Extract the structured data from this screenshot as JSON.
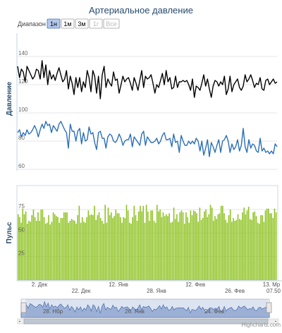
{
  "chart_data": {
    "title": "Артериальное давление",
    "range_selector": {
      "label": "Диапазон",
      "buttons": [
        "1н",
        "1м",
        "3м",
        "1г",
        "Все"
      ],
      "selected": "1н",
      "disabled": [
        "1г",
        "Все"
      ]
    },
    "x_axis": {
      "ticks_top": [
        "2. Дек",
        "12. Янв",
        "12. Фев",
        "13. Мр"
      ],
      "ticks_bottom": [
        "22. Дек",
        "28. Янв",
        "26. Фев",
        "07.50"
      ]
    },
    "navigator": {
      "labels": [
        "28. Нбр",
        "26. Янв",
        "24. Фев"
      ]
    },
    "credits": "Highcharts.com",
    "panels": [
      {
        "type": "line",
        "ylabel": "Давление",
        "ylim": [
          60,
          140
        ],
        "yticks": [
          60,
          80,
          100,
          120,
          140
        ],
        "grid": true,
        "series": [
          {
            "color": "#000000",
            "values": [
              133,
              125,
              131,
              129,
              122,
              133,
              130,
              127,
              124,
              126,
              131,
              130,
              124,
              137,
              125,
              134,
              120,
              130,
              124,
              127,
              123,
              128,
              132,
              127,
              122,
              124,
              130,
              117,
              126,
              121,
              113,
              125,
              118,
              125,
              115,
              122,
              118,
              130,
              125,
              115,
              130,
              126,
              114,
              126,
              110,
              127,
              133,
              118,
              124,
              121,
              119,
              129,
              123,
              124,
              114,
              120,
              126,
              122,
              124,
              125,
              121,
              116,
              125,
              121,
              116,
              123,
              130,
              118,
              126,
              124,
              125,
              127,
              121,
              114,
              120,
              118,
              123,
              128,
              120,
              130,
              122,
              125,
              117,
              118,
              126,
              118,
              122,
              122,
              123,
              122,
              123,
              120,
              116,
              124,
              111,
              119,
              118,
              116,
              121,
              127,
              119,
              124,
              117,
              111,
              119,
              123,
              122,
              119,
              122,
              120,
              126,
              113,
              117,
              126,
              115,
              120,
              122,
              124,
              118,
              116,
              119,
              127,
              122,
              124,
              127,
              123,
              118,
              121,
              120,
              125,
              117,
              116,
              123,
              124,
              120,
              122,
              124,
              121,
              122
            ]
          },
          {
            "color": "#2c6fb5",
            "values": [
              86,
              88,
              83,
              86,
              84,
              88,
              85,
              86,
              88,
              91,
              88,
              83,
              88,
              92,
              89,
              94,
              91,
              92,
              86,
              91,
              89,
              87,
              92,
              94,
              91,
              88,
              86,
              75,
              92,
              87,
              87,
              80,
              87,
              89,
              78,
              86,
              80,
              81,
              90,
              85,
              86,
              79,
              74,
              86,
              87,
              82,
              82,
              75,
              83,
              85,
              84,
              80,
              79,
              81,
              85,
              82,
              77,
              80,
              81,
              81,
              85,
              76,
              83,
              81,
              79,
              77,
              85,
              87,
              77,
              83,
              81,
              79,
              79,
              80,
              82,
              78,
              80,
              84,
              86,
              81,
              81,
              82,
              76,
              85,
              79,
              80,
              72,
              84,
              80,
              77,
              77,
              80,
              78,
              80,
              78,
              82,
              80,
              73,
              80,
              70,
              75,
              81,
              69,
              79,
              76,
              72,
              77,
              81,
              72,
              80,
              81,
              84,
              80,
              72,
              78,
              74,
              76,
              81,
              73,
              77,
              89,
              76,
              72,
              81,
              75,
              78,
              77,
              73,
              72,
              82,
              73,
              75,
              72,
              73,
              71,
              73,
              71,
              78,
              76
            ]
          }
        ]
      },
      {
        "type": "bar",
        "ylabel": "Пульс",
        "ylim": [
          0,
          90
        ],
        "yticks": [
          0,
          25,
          50,
          75
        ],
        "grid": true,
        "series": [
          {
            "color": "#8dc21f",
            "values": [
              70,
              67,
              61,
              76,
              70,
              73,
              60,
              63,
              62,
              69,
              75,
              67,
              63,
              72,
              63,
              75,
              75,
              67,
              60,
              61,
              69,
              59,
              62,
              72,
              70,
              68,
              67,
              61,
              66,
              66,
              72,
              72,
              72,
              61,
              63,
              65,
              64,
              63,
              60,
              69,
              79,
              61,
              67,
              62,
              61,
              67,
              74,
              69,
              70,
              69,
              79,
              64,
              69,
              72,
              66,
              63,
              60,
              80,
              61,
              77,
              69,
              72,
              66,
              68,
              75,
              71,
              71,
              67,
              61,
              67,
              66,
              80,
              74,
              61,
              60,
              67,
              79,
              69,
              63,
              73,
              79,
              73,
              79,
              61,
              80,
              73,
              63,
              74,
              74,
              63,
              61,
              80,
              73,
              75,
              67,
              72,
              68,
              70,
              68,
              71,
              61,
              62,
              77,
              65,
              70,
              62,
              72,
              74,
              72,
              60,
              72,
              67,
              61,
              74,
              69,
              74,
              73,
              71,
              62,
              77,
              64,
              66,
              73,
              75,
              67,
              70,
              80,
              77,
              63,
              68,
              65,
              70,
              71,
              79,
              79,
              71,
              64,
              61,
              69,
              75,
              62,
              66,
              63,
              64,
              70,
              65,
              64,
              72,
              77,
              70,
              74,
              78,
              65,
              64,
              72,
              73,
              68,
              61,
              60,
              69,
              69,
              62,
              74,
              76,
              76,
              71,
              71,
              66,
              76,
              72
            ]
          }
        ]
      }
    ]
  }
}
